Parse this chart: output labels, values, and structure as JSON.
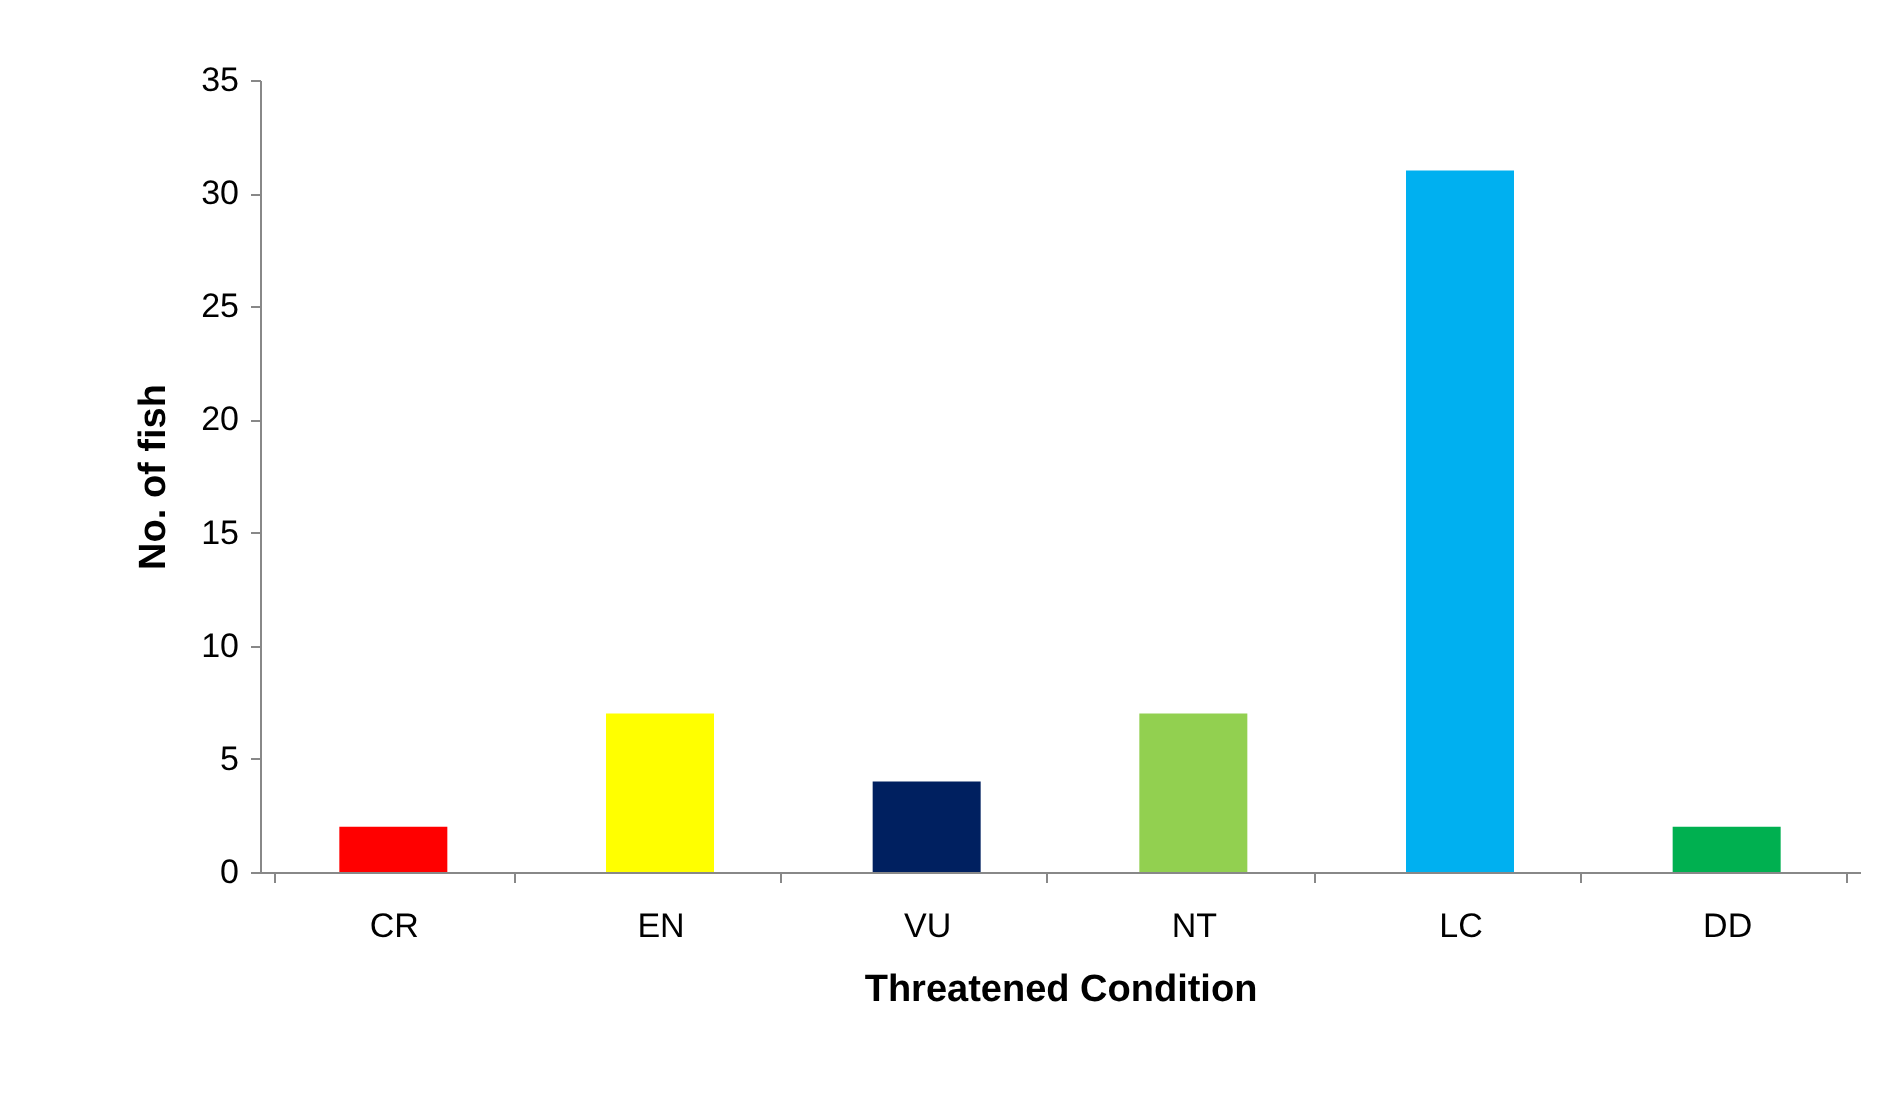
{
  "chart_data": {
    "type": "bar",
    "xlabel": "Threatened Condition",
    "ylabel": "No. of fish",
    "categories": [
      "CR",
      "EN",
      "VU",
      "NT",
      "LC",
      "DD"
    ],
    "values": [
      2,
      7,
      4,
      7,
      31,
      2
    ],
    "colors": [
      "#ff0000",
      "#ffff00",
      "#002060",
      "#92d050",
      "#00b0f0",
      "#00b050"
    ],
    "ylim": [
      0,
      35
    ],
    "yticks": [
      0,
      5,
      10,
      15,
      20,
      25,
      30,
      35
    ],
    "grid": false
  }
}
